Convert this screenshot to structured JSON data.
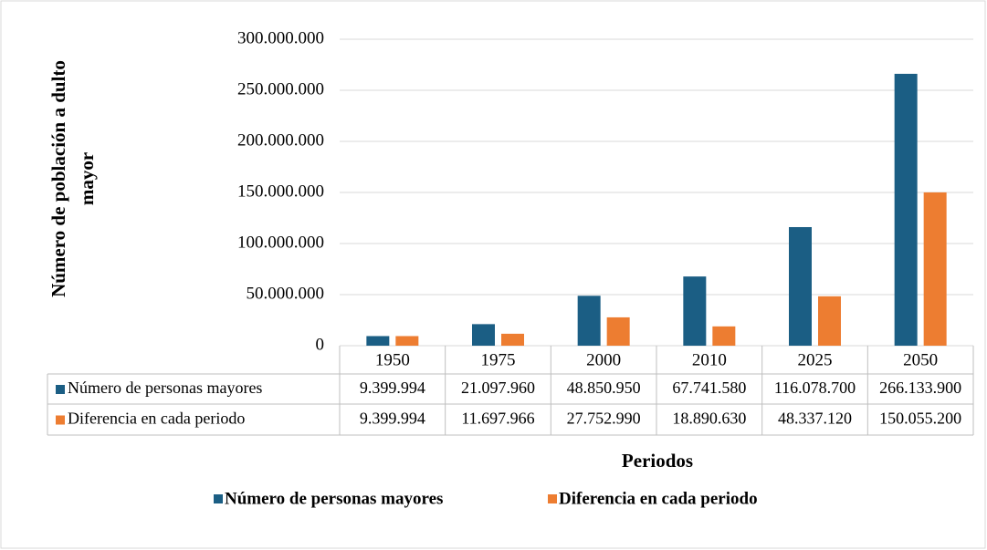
{
  "chart_data": {
    "type": "bar",
    "x_label": "Periodos",
    "y_label": "Número de población a dulto mayor",
    "categories": [
      "1950",
      "1975",
      "2000",
      "2010",
      "2025",
      "2050"
    ],
    "series": [
      {
        "name": "Número de personas mayores",
        "color": "#1b5e84",
        "values": [
          9399994,
          21097960,
          48850950,
          67741580,
          116078700,
          266133900
        ],
        "value_labels": [
          "9.399.994",
          "21.097.960",
          "48.850.950",
          "67.741.580",
          "116.078.700",
          "266.133.900"
        ]
      },
      {
        "name": "Diferencia en cada periodo",
        "color": "#ed7d31",
        "values": [
          9399994,
          11697966,
          27752990,
          18890630,
          48337120,
          150055200
        ],
        "value_labels": [
          "9.399.994",
          "11.697.966",
          "27.752.990",
          "18.890.630",
          "48.337.120",
          "150.055.200"
        ]
      }
    ],
    "ylim": [
      0,
      300000000
    ],
    "yticks": [
      0,
      {
        "value": 50000000,
        "label": "50.000.000"
      },
      {
        "value": 100000000,
        "label": "100.000.000"
      },
      {
        "value": 150000000,
        "label": "150.000.000"
      },
      {
        "value": 200000000,
        "label": "200.000.000"
      },
      {
        "value": 250000000,
        "label": "250.000.000"
      },
      {
        "value": 300000000,
        "label": "300.000.000"
      }
    ],
    "grid": true
  }
}
